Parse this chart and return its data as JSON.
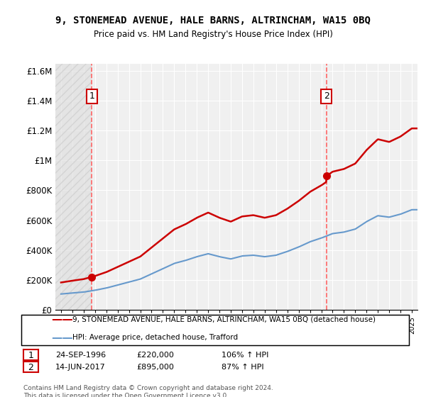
{
  "title": "9, STONEMEAD AVENUE, HALE BARNS, ALTRINCHAM, WA15 0BQ",
  "subtitle": "Price paid vs. HM Land Registry's House Price Index (HPI)",
  "legend_line1": "9, STONEMEAD AVENUE, HALE BARNS, ALTRINCHAM, WA15 0BQ (detached house)",
  "legend_line2": "HPI: Average price, detached house, Trafford",
  "annotation1_label": "1",
  "annotation1_date": "24-SEP-1996",
  "annotation1_price": "£220,000",
  "annotation1_hpi": "106% ↑ HPI",
  "annotation2_label": "2",
  "annotation2_date": "14-JUN-2017",
  "annotation2_price": "£895,000",
  "annotation2_hpi": "87% ↑ HPI",
  "footer": "Contains HM Land Registry data © Crown copyright and database right 2024.\nThis data is licensed under the Open Government Licence v3.0.",
  "sale1_year": 1996.73,
  "sale1_price": 220000,
  "sale2_year": 2017.45,
  "sale2_price": 895000,
  "price_line_color": "#cc0000",
  "hpi_line_color": "#6699cc",
  "dashed_line_color": "#ff6666",
  "background_color": "#ffffff",
  "plot_bg_color": "#f0f0f0",
  "hatch_color": "#d8d8d8",
  "ylim_min": 0,
  "ylim_max": 1650000,
  "xlim_min": 1993.5,
  "xlim_max": 2025.5
}
